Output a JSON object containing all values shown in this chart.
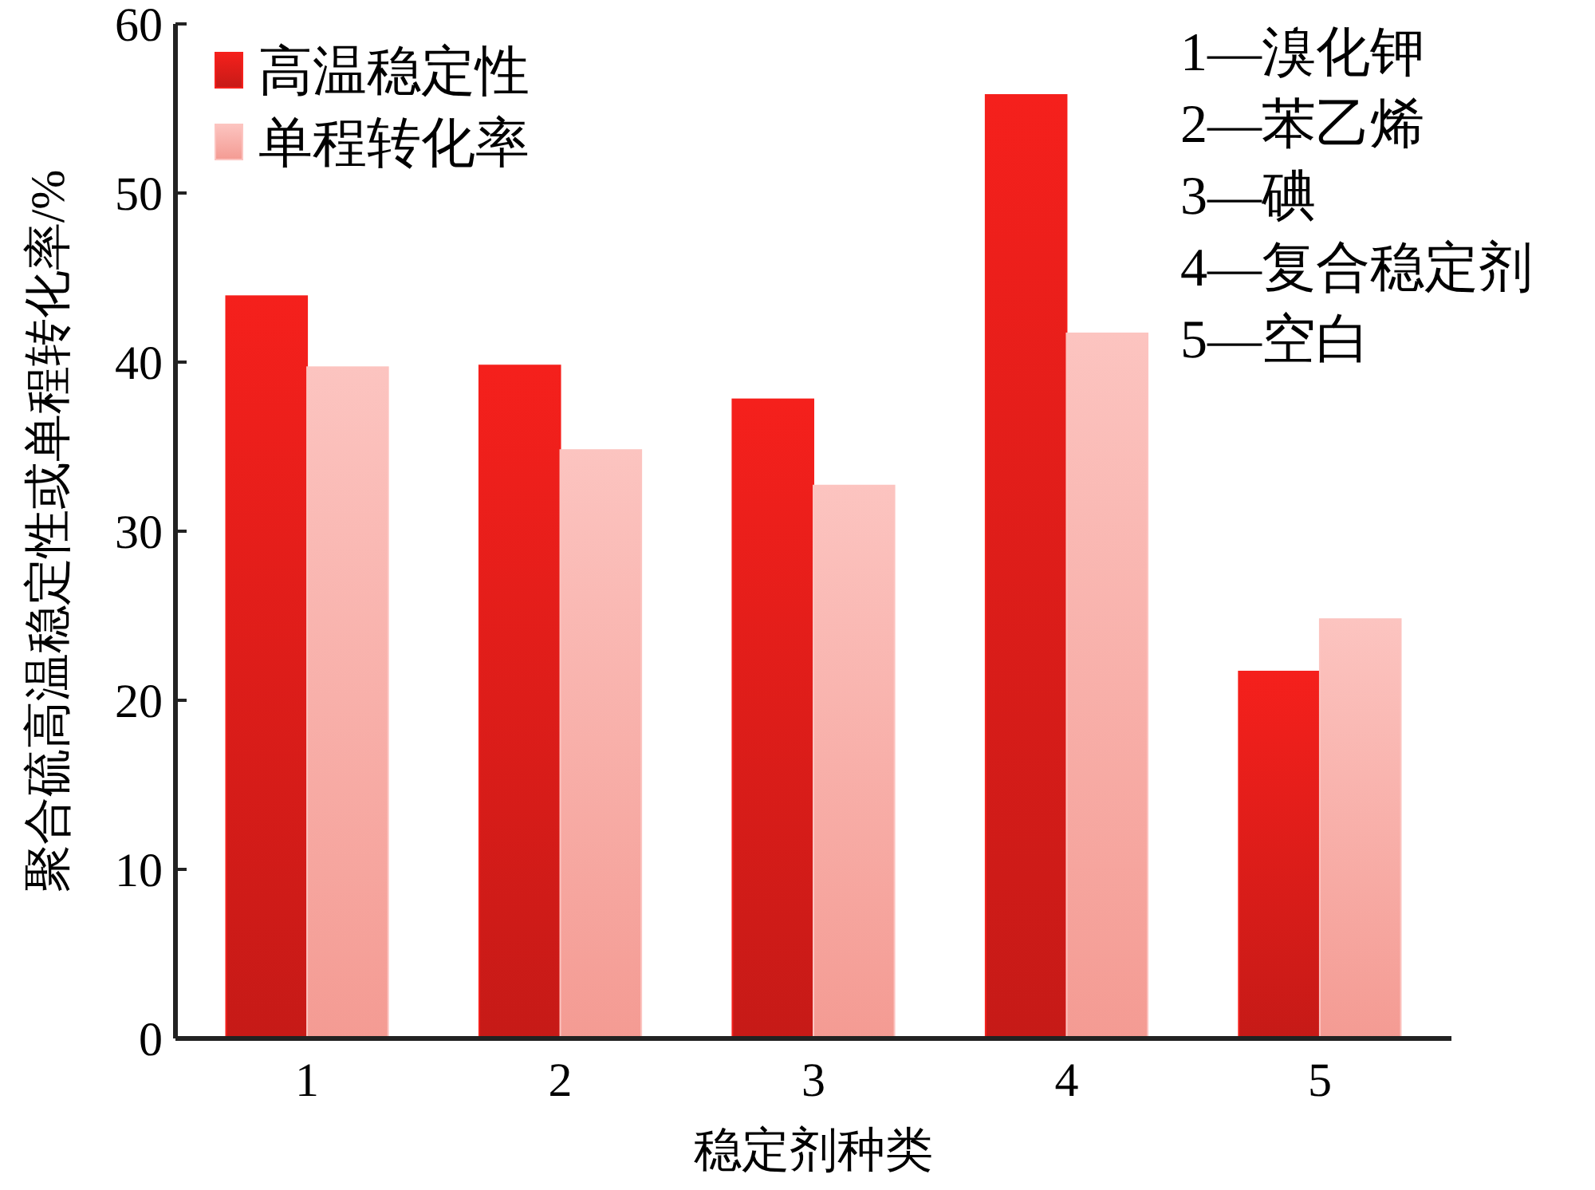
{
  "chart_data": {
    "type": "bar",
    "xlabel": "稳定剂种类",
    "ylabel": "聚合硫高温稳定性或单程转化率/%",
    "categories": [
      "1",
      "2",
      "3",
      "4",
      "5"
    ],
    "series": [
      {
        "name": "高温稳定性",
        "color": "#f5201c",
        "values": [
          43.9,
          39.8,
          37.8,
          55.8,
          21.7
        ]
      },
      {
        "name": "单程转化率",
        "color": "#fcc4c0",
        "values": [
          39.7,
          34.8,
          32.7,
          41.7,
          24.8
        ]
      }
    ],
    "ylim": [
      0,
      60
    ],
    "yticks": [
      0,
      10,
      20,
      30,
      40,
      50,
      60
    ],
    "legend": "top left",
    "annotations": [
      "1—溴化钾",
      "2—苯乙烯",
      "3—碘",
      "4—复合稳定剂",
      "5—空白"
    ]
  }
}
